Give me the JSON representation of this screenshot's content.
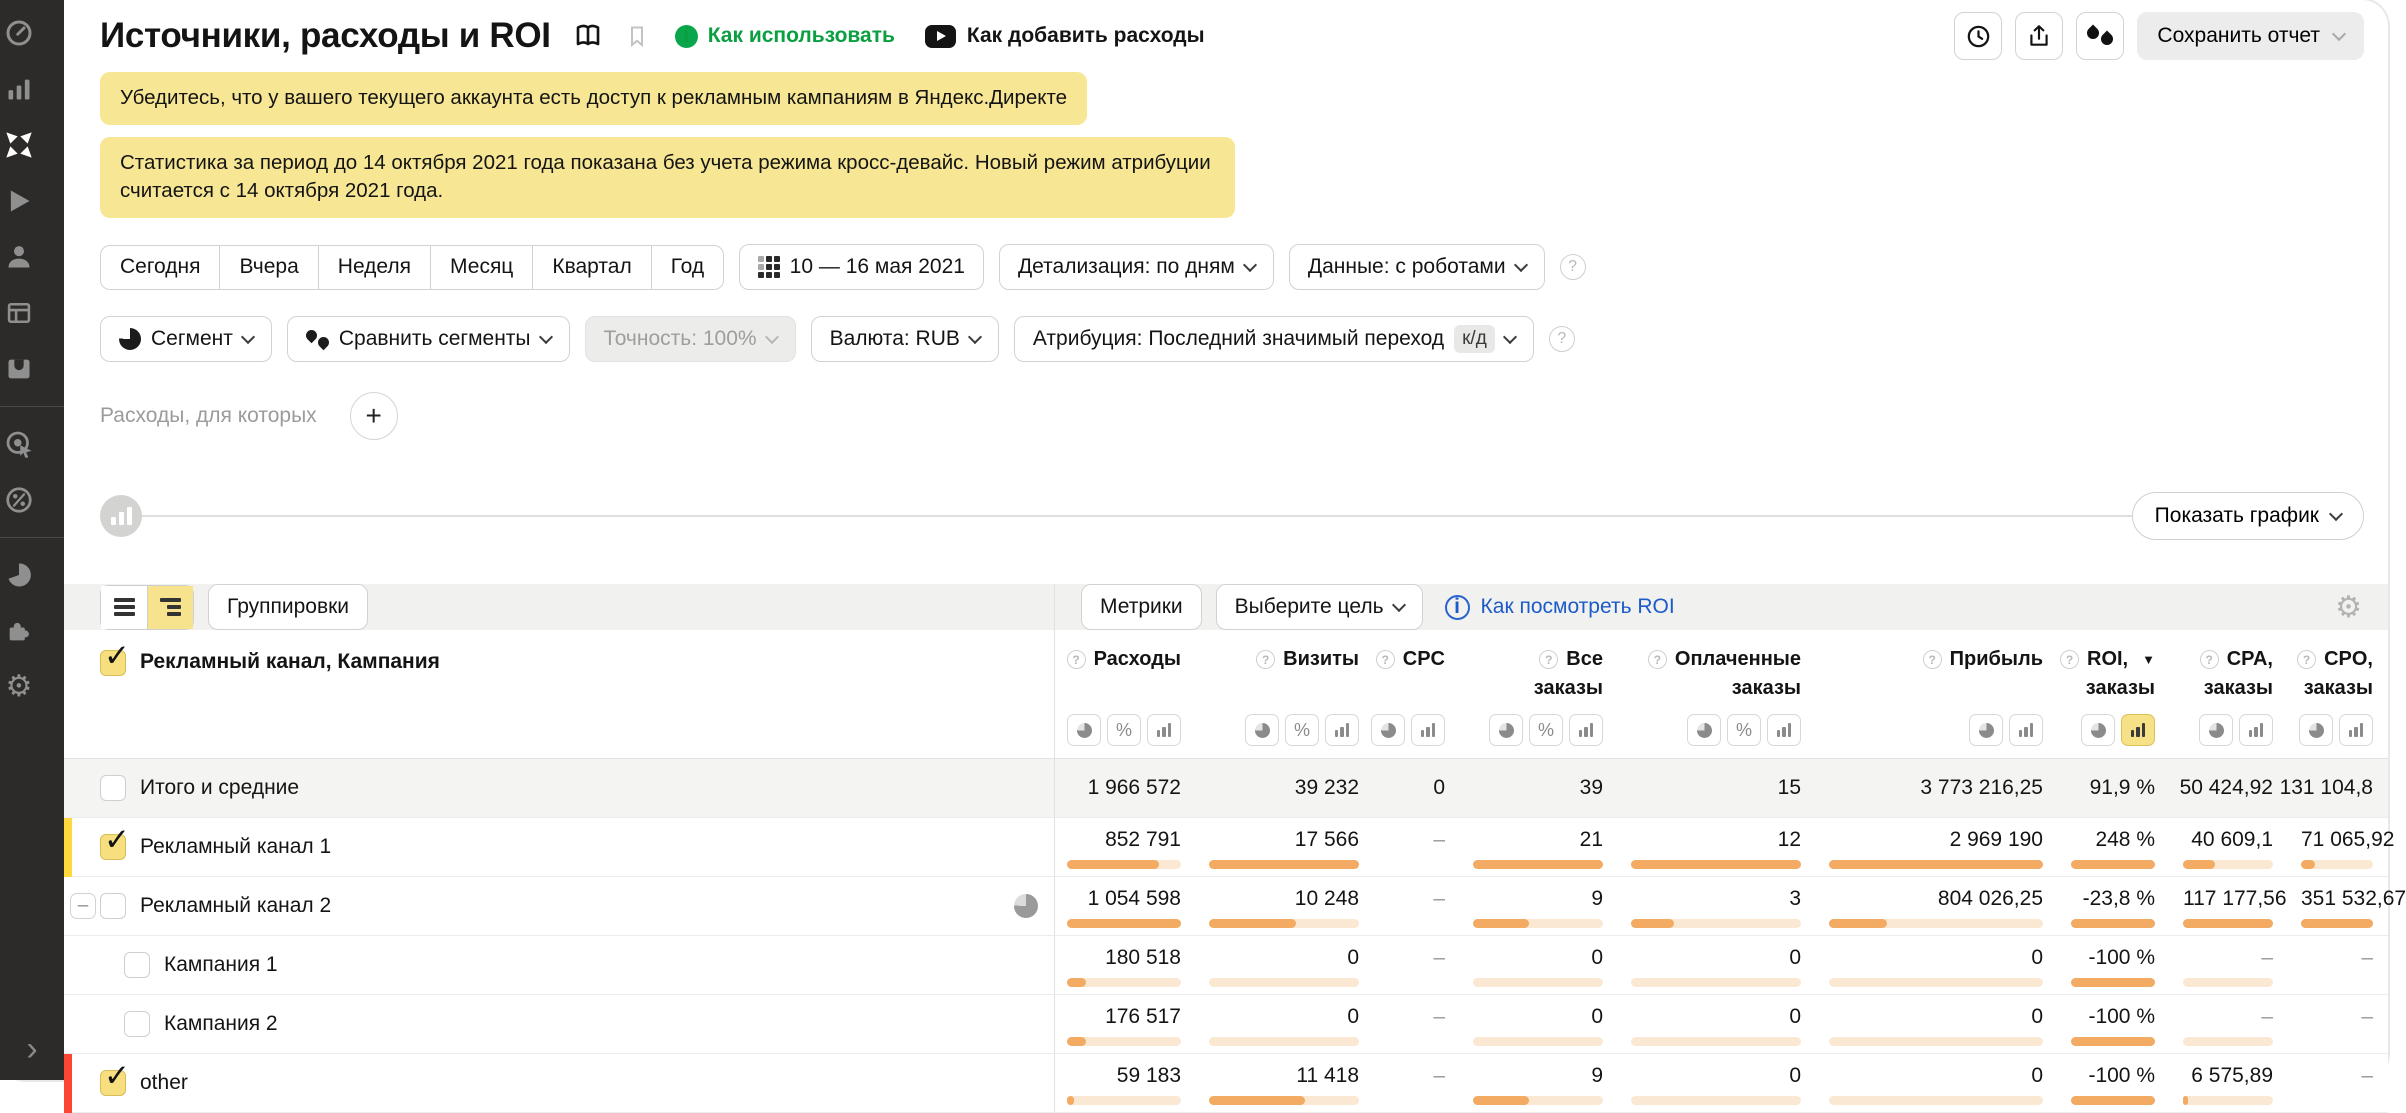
{
  "page": {
    "title": "Источники, расходы и ROI",
    "link_how_to_use": "Как использовать",
    "link_how_to_add": "Как добавить расходы",
    "save_report": "Сохранить отчет"
  },
  "banners": {
    "access": "Убедитесь, что у вашего текущего аккаунта есть доступ к рекламным кампаниям в Яндекс.Директе",
    "attribution": "Статистика за период до 14 октября 2021 года показана без учета режима кросс-девайс. Новый режим атрибуции считается с 14 октября 2021 года."
  },
  "filters": {
    "period_tabs": [
      "Сегодня",
      "Вчера",
      "Неделя",
      "Месяц",
      "Квартал",
      "Год"
    ],
    "date_range": "10 — 16 мая 2021",
    "detail": "Детализация: по дням",
    "robots": "Данные: с роботами",
    "segment": "Сегмент",
    "compare": "Сравнить сегменты",
    "accuracy": "Точность: 100%",
    "currency": "Валюта: RUB",
    "attribution": "Атрибуция: Последний значимый переход",
    "attribution_badge": "к/д",
    "expenses_for_which": "Расходы, для которых",
    "show_chart": "Показать график"
  },
  "toolbar": {
    "groupings": "Группировки",
    "metrics": "Метрики",
    "goal": "Выберите цель",
    "roi_help": "Как посмотреть ROI"
  },
  "table": {
    "dimension_header": "Рекламный канал, Кампания",
    "columns": [
      {
        "label": "Расходы",
        "sub": "",
        "icons": [
          "pie",
          "pct",
          "bars"
        ],
        "active": -1,
        "sorted": false
      },
      {
        "label": "Визиты",
        "sub": "",
        "icons": [
          "pie",
          "pct",
          "bars"
        ],
        "active": -1,
        "sorted": false
      },
      {
        "label": "CPC",
        "sub": "",
        "icons": [
          "pie",
          "bars"
        ],
        "active": -1,
        "sorted": false
      },
      {
        "label": "Все",
        "sub": "заказы",
        "icons": [
          "pie",
          "pct",
          "bars"
        ],
        "active": -1,
        "sorted": false
      },
      {
        "label": "Оплаченные",
        "sub": "заказы",
        "icons": [
          "pie",
          "pct",
          "bars"
        ],
        "active": -1,
        "sorted": false
      },
      {
        "label": "Прибыль",
        "sub": "",
        "icons": [
          "pie",
          "bars"
        ],
        "active": -1,
        "sorted": false
      },
      {
        "label": "ROI,",
        "sub": "заказы",
        "icons": [
          "pie",
          "bars"
        ],
        "active": 1,
        "sorted": true
      },
      {
        "label": "CPA,",
        "sub": "заказы",
        "icons": [
          "pie",
          "bars"
        ],
        "active": -1,
        "sorted": false
      },
      {
        "label": "CPO,",
        "sub": "заказы",
        "icons": [
          "pie",
          "bars"
        ],
        "active": -1,
        "sorted": false
      }
    ],
    "rows": [
      {
        "label": "Итого и средние",
        "total": true,
        "checked": false,
        "level": 0,
        "stripe": "",
        "expander": false,
        "pie_icon": false,
        "values": [
          "1 966 572",
          "39 232",
          "0",
          "39",
          "15",
          "3 773 216,25",
          "91,9 %",
          "50 424,92",
          "131 104,8"
        ],
        "fills": [
          -1,
          -1,
          -1,
          -1,
          -1,
          -1,
          -1,
          -1,
          -1
        ]
      },
      {
        "label": "Рекламный канал 1",
        "total": false,
        "checked": true,
        "level": 0,
        "stripe": "yellow",
        "expander": false,
        "pie_icon": false,
        "values": [
          "852 791",
          "17 566",
          "–",
          "21",
          "12",
          "2 969 190",
          "248 %",
          "40 609,1",
          "71 065,92"
        ],
        "fills": [
          81,
          100,
          -1,
          100,
          100,
          100,
          100,
          35,
          20
        ]
      },
      {
        "label": "Рекламный канал 2",
        "total": false,
        "checked": false,
        "level": 0,
        "stripe": "",
        "expander": true,
        "pie_icon": true,
        "values": [
          "1 054 598",
          "10 248",
          "–",
          "9",
          "3",
          "804 026,25",
          "-23,8 %",
          "117 177,56",
          "351 532,67"
        ],
        "fills": [
          100,
          58,
          -1,
          43,
          25,
          27,
          100,
          100,
          100
        ]
      },
      {
        "label": "Кампания 1",
        "total": false,
        "checked": false,
        "level": 1,
        "stripe": "",
        "expander": false,
        "pie_icon": false,
        "values": [
          "180 518",
          "0",
          "–",
          "0",
          "0",
          "0",
          "-100 %",
          "–",
          "–"
        ],
        "fills": [
          17,
          0,
          -1,
          0,
          0,
          0,
          100,
          0,
          -1
        ]
      },
      {
        "label": "Кампания 2",
        "total": false,
        "checked": false,
        "level": 1,
        "stripe": "",
        "expander": false,
        "pie_icon": false,
        "values": [
          "176 517",
          "0",
          "–",
          "0",
          "0",
          "0",
          "-100 %",
          "–",
          "–"
        ],
        "fills": [
          17,
          0,
          -1,
          0,
          0,
          0,
          100,
          0,
          -1
        ]
      },
      {
        "label": "other",
        "total": false,
        "checked": true,
        "level": 0,
        "stripe": "red",
        "expander": false,
        "pie_icon": false,
        "values": [
          "59 183",
          "11 418",
          "–",
          "9",
          "0",
          "0",
          "-100 %",
          "6 575,89",
          "–"
        ],
        "fills": [
          6,
          64,
          -1,
          43,
          0,
          0,
          100,
          6,
          -1
        ]
      }
    ]
  },
  "sidebar": {
    "items": [
      {
        "icon": "dashboard-gauge"
      },
      {
        "icon": "reports-bars"
      },
      {
        "icon": "metrica-logo",
        "active": true
      },
      {
        "icon": "webvisor-play"
      },
      {
        "icon": "visitors-user"
      },
      {
        "icon": "content-layout"
      },
      {
        "icon": "inbox-tray"
      },
      {
        "divider": true
      },
      {
        "icon": "goals-target"
      },
      {
        "icon": "advertising-percent"
      },
      {
        "divider": true
      },
      {
        "icon": "segments-pie"
      },
      {
        "icon": "integrations-puzzle"
      },
      {
        "icon": "settings-gear"
      }
    ]
  },
  "colors": {
    "banner_yellow": "#f7e794",
    "highlight_yellow": "#f7e28e",
    "bar_fill": "#f3ab63",
    "bar_track": "#fbe8d2",
    "stripe_yellow": "#ffd83d",
    "stripe_red": "#fc4533",
    "link_blue": "#1d5bc8",
    "link_green": "#0aa041",
    "sidebar_bg": "#2c2b29"
  }
}
